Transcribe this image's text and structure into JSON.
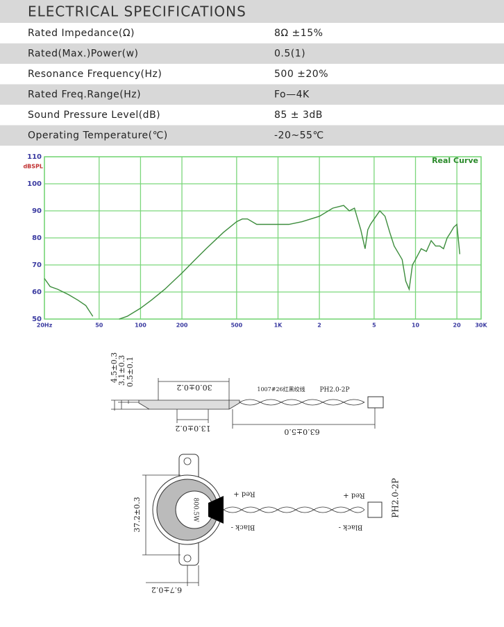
{
  "header": {
    "title": "ELECTRICAL SPECIFICATIONS"
  },
  "specs": {
    "rows": [
      [
        "Rated Impedance(Ω)",
        "8Ω ±15%"
      ],
      [
        "Rated(Max.)Power(w)",
        "0.5(1)"
      ],
      [
        "Resonance Frequency(Hz)",
        "500 ±20%"
      ],
      [
        "Rated Freq.Range(Hz)",
        "Fo—4K"
      ],
      [
        "Sound Pressure Level(dB)",
        "85 ± 3dB"
      ],
      [
        "Operating Temperature(℃)",
        "-20~55℃"
      ]
    ]
  },
  "chart_data": {
    "type": "line",
    "ylabel": "dBSPL",
    "annotation": "Real Curve",
    "log_x": true,
    "grid": true,
    "x": [
      20,
      22,
      25,
      30,
      35,
      40,
      45,
      50,
      60,
      70,
      80,
      100,
      120,
      150,
      200,
      250,
      300,
      400,
      500,
      550,
      600,
      700,
      800,
      1000,
      1200,
      1500,
      2000,
      2500,
      3000,
      3300,
      3600,
      4000,
      4300,
      4500,
      4700,
      5000,
      5500,
      6000,
      6500,
      7000,
      8000,
      8500,
      9000,
      9500,
      10000,
      11000,
      12000,
      13000,
      14000,
      15000,
      16000,
      17000,
      18000,
      19000,
      20000,
      21000
    ],
    "series": [
      {
        "color": "#3c8c3c",
        "values": [
          65,
          62,
          61,
          59,
          57,
          55,
          51,
          null,
          null,
          50,
          51,
          54,
          57,
          61,
          67,
          72,
          76,
          82,
          86,
          87,
          87,
          85,
          85,
          85,
          85,
          86,
          88,
          91,
          92,
          90,
          91,
          83,
          76,
          83,
          85,
          87,
          90,
          88,
          82,
          77,
          72,
          64,
          61,
          70,
          72,
          76,
          75,
          79,
          77,
          77,
          76,
          80,
          82,
          84,
          85,
          74
        ]
      }
    ],
    "xlim": [
      20,
      30000
    ],
    "xticks": [
      {
        "value": 20,
        "label": "20Hz"
      },
      50,
      100,
      200,
      500,
      {
        "value": 1000,
        "label": "1K"
      },
      {
        "value": 2000,
        "label": "2"
      },
      {
        "value": 5000,
        "label": "5"
      },
      {
        "value": 10000,
        "label": "10"
      },
      {
        "value": 20000,
        "label": "20"
      },
      {
        "value": 30000,
        "label": "30K"
      }
    ],
    "ylim": [
      50,
      110
    ],
    "yticks": [
      50,
      60,
      70,
      80,
      90,
      100,
      110
    ]
  },
  "drawing": {
    "side": {
      "dims": [
        "4.5±0.3",
        "3.1±0.3",
        "0.5±0.1",
        "30.0±0.2",
        "13.0±0.2",
        "63.0±5.0"
      ],
      "wire": "1007#26红黑绞线",
      "connector": "PH2.0-2P"
    },
    "top": {
      "dims": [
        "37.2±0.3",
        "6.7±0.2"
      ],
      "marking": "800.5W",
      "red": "Red +",
      "black": "Black -",
      "red2": "Red +",
      "black2": "Black -",
      "connector": "PH2.0-2P"
    }
  }
}
